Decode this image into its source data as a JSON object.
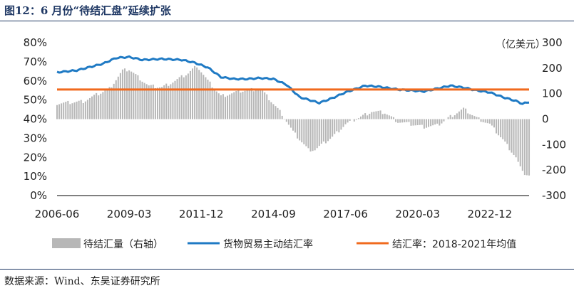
{
  "title": "图12：6 月份“待结汇盘”延续扩张",
  "source": "数据来源：Wind、东吴证券研究所",
  "colors": {
    "title": "#1f3864",
    "bars": "#b7b7b7",
    "trade_line": "#1f7ac4",
    "avg_line": "#f06a1e"
  },
  "chart_data": {
    "type": "bar+line",
    "title": "",
    "right_axis_unit": "（亿美元）",
    "x_tick_labels": [
      "2006-06",
      "2009-03",
      "2011-12",
      "2014-09",
      "2017-06",
      "2020-03",
      "2022-12"
    ],
    "x_range": [
      "2006-06",
      "2024-06"
    ],
    "left_axis": {
      "range": [
        0,
        80
      ],
      "ticks": [
        "0%",
        "10%",
        "20%",
        "30%",
        "40%",
        "50%",
        "60%",
        "70%",
        "80%"
      ]
    },
    "right_axis": {
      "range": [
        -300,
        300
      ],
      "ticks": [
        "-300",
        "-200",
        "-100",
        "0",
        "100",
        "200",
        "300"
      ]
    },
    "legend": {
      "placement": "bottom"
    },
    "grid": false,
    "series": [
      {
        "name": "待结汇量（右轴）",
        "type": "bar",
        "axis": "right",
        "note": "monthly series, values in 亿美元",
        "keypoints": [
          [
            "2006-06",
            60
          ],
          [
            "2007-06",
            70
          ],
          [
            "2008-06",
            120
          ],
          [
            "2008-12",
            190
          ],
          [
            "2009-03",
            195
          ],
          [
            "2009-12",
            130
          ],
          [
            "2010-06",
            125
          ],
          [
            "2010-12",
            150
          ],
          [
            "2011-06",
            180
          ],
          [
            "2011-10",
            210
          ],
          [
            "2012-03",
            150
          ],
          [
            "2012-09",
            90
          ],
          [
            "2013-06",
            110
          ],
          [
            "2014-03",
            120
          ],
          [
            "2014-09",
            60
          ],
          [
            "2015-01",
            20
          ],
          [
            "2015-06",
            -50
          ],
          [
            "2016-01",
            -120
          ],
          [
            "2016-04",
            -120
          ],
          [
            "2016-12",
            -70
          ],
          [
            "2017-06",
            -20
          ],
          [
            "2017-12",
            5
          ],
          [
            "2018-06",
            30
          ],
          [
            "2018-12",
            25
          ],
          [
            "2019-06",
            -10
          ],
          [
            "2019-12",
            -20
          ],
          [
            "2020-06",
            -30
          ],
          [
            "2020-12",
            -25
          ],
          [
            "2021-06",
            10
          ],
          [
            "2021-12",
            40
          ],
          [
            "2022-06",
            5
          ],
          [
            "2022-12",
            -20
          ],
          [
            "2023-06",
            -80
          ],
          [
            "2023-12",
            -150
          ],
          [
            "2024-03",
            -210
          ],
          [
            "2024-06",
            -220
          ]
        ]
      },
      {
        "name": "货物贸易主动结汇率",
        "type": "line",
        "axis": "left",
        "keypoints": [
          [
            "2006-06",
            64.5
          ],
          [
            "2007-03",
            65.5
          ],
          [
            "2008-03",
            69
          ],
          [
            "2008-09",
            72
          ],
          [
            "2009-03",
            72.5
          ],
          [
            "2009-09",
            71
          ],
          [
            "2010-06",
            71.5
          ],
          [
            "2011-03",
            71
          ],
          [
            "2011-09",
            69.5
          ],
          [
            "2012-03",
            67
          ],
          [
            "2012-09",
            62
          ],
          [
            "2013-03",
            61
          ],
          [
            "2013-09",
            61
          ],
          [
            "2014-03",
            61.5
          ],
          [
            "2014-09",
            61
          ],
          [
            "2015-03",
            58
          ],
          [
            "2015-09",
            51.5
          ],
          [
            "2016-03",
            49.5
          ],
          [
            "2016-06",
            48.5
          ],
          [
            "2016-12",
            51
          ],
          [
            "2017-06",
            54
          ],
          [
            "2018-03",
            57.5
          ],
          [
            "2018-09",
            57
          ],
          [
            "2019-06",
            55.5
          ],
          [
            "2019-12",
            55
          ],
          [
            "2020-06",
            54.5
          ],
          [
            "2020-12",
            56
          ],
          [
            "2021-06",
            57.5
          ],
          [
            "2021-12",
            56.5
          ],
          [
            "2022-06",
            55
          ],
          [
            "2022-12",
            54
          ],
          [
            "2023-06",
            51.5
          ],
          [
            "2023-12",
            49.5
          ],
          [
            "2024-03",
            48
          ],
          [
            "2024-06",
            49
          ]
        ]
      },
      {
        "name": "结汇率：2018-2021年均值",
        "type": "line",
        "axis": "left",
        "keypoints": [
          [
            "2006-06",
            55.5
          ],
          [
            "2024-06",
            55.5
          ]
        ]
      }
    ]
  }
}
